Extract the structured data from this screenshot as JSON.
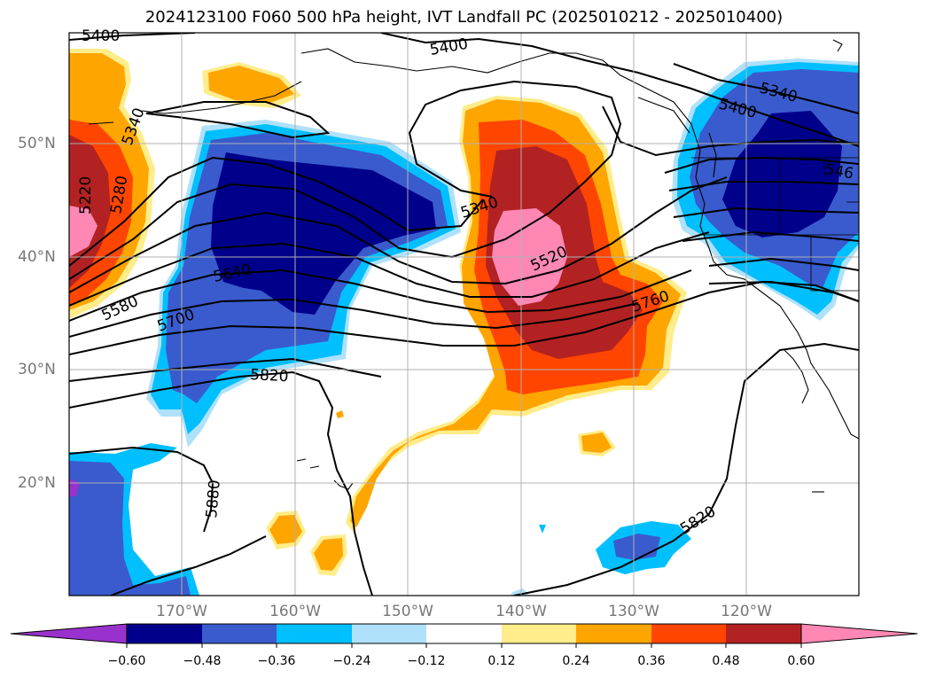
{
  "title": "2024123100 F060 500 hPa height, IVT Landfall PC (2025010212 - 2025010400)",
  "map": {
    "lon_labels": [
      "170°W",
      "160°W",
      "150°W",
      "140°W",
      "130°W",
      "120°W"
    ],
    "lat_labels": [
      "50°N",
      "40°N",
      "30°N",
      "20°N"
    ],
    "contour_labels": [
      "5400",
      "5400",
      "5400",
      "5340",
      "5340",
      "5220",
      "5280",
      "5340",
      "5520",
      "5640",
      "5580",
      "5700",
      "5760",
      "5820",
      "5880",
      "5820",
      "546"
    ]
  },
  "colorbar": {
    "ticks": [
      "−0.60",
      "−0.48",
      "−0.36",
      "−0.24",
      "−0.12",
      "0.12",
      "0.24",
      "0.36",
      "0.48",
      "0.60"
    ],
    "colors": [
      "#9932cc",
      "#00008b",
      "#3a5bcd",
      "#00bfff",
      "#afe1fa",
      "#ffffff",
      "#ffec8b",
      "#ffa500",
      "#ff4500",
      "#b22222",
      "#ff87b4"
    ]
  }
}
